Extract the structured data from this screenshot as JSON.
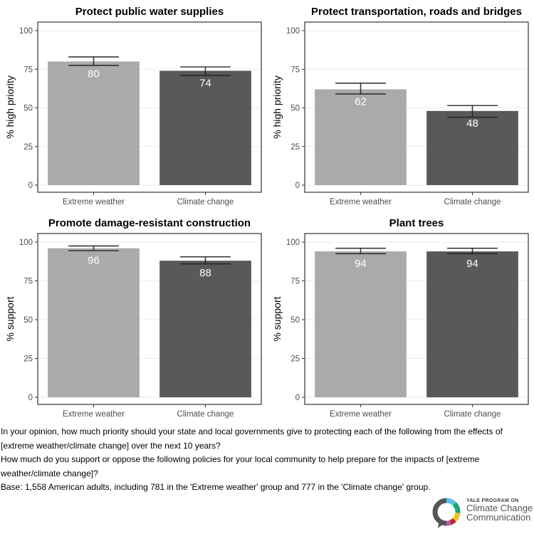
{
  "chart_data": [
    {
      "type": "bar",
      "title": "Protect public water supplies",
      "xlabel": "",
      "ylabel": "% high priority",
      "ylim": [
        0,
        100
      ],
      "yticks": [
        0,
        25,
        50,
        75,
        100
      ],
      "categories": [
        "Extreme weather",
        "Climate change"
      ],
      "values": [
        80,
        74
      ],
      "error_low": [
        77.5,
        71
      ],
      "error_high": [
        83,
        76.5
      ],
      "data_labels": [
        "80",
        "74"
      ],
      "grid": true
    },
    {
      "type": "bar",
      "title": "Protect transportation, roads and bridges",
      "xlabel": "",
      "ylabel": "% high priority",
      "ylim": [
        0,
        100
      ],
      "yticks": [
        0,
        25,
        50,
        75,
        100
      ],
      "categories": [
        "Extreme weather",
        "Climate change"
      ],
      "values": [
        62,
        48
      ],
      "error_low": [
        59,
        44
      ],
      "error_high": [
        66,
        51.5
      ],
      "data_labels": [
        "62",
        "48"
      ],
      "grid": true
    },
    {
      "type": "bar",
      "title": "Promote damage-resistant construction",
      "xlabel": "",
      "ylabel": "% support",
      "ylim": [
        0,
        100
      ],
      "yticks": [
        0,
        25,
        50,
        75,
        100
      ],
      "categories": [
        "Extreme weather",
        "Climate change"
      ],
      "values": [
        96,
        88
      ],
      "error_low": [
        94.5,
        86
      ],
      "error_high": [
        97.5,
        90.5
      ],
      "data_labels": [
        "96",
        "88"
      ],
      "grid": true
    },
    {
      "type": "bar",
      "title": "Plant trees",
      "xlabel": "",
      "ylabel": "% support",
      "ylim": [
        0,
        100
      ],
      "yticks": [
        0,
        25,
        50,
        75,
        100
      ],
      "categories": [
        "Extreme weather",
        "Climate change"
      ],
      "values": [
        94,
        94
      ],
      "error_low": [
        92.5,
        92.5
      ],
      "error_high": [
        96,
        96
      ],
      "data_labels": [
        "94",
        "94"
      ],
      "grid": true
    }
  ],
  "colors": {
    "extreme_weather": "#aaaaaa",
    "climate_change": "#595959",
    "label_text": "#ffffff",
    "error_bar": "#222222",
    "grid": "#ebebeb",
    "tick_text": "#4d4d4d"
  },
  "caption": {
    "line1": "In your opinion, how much priority should your state and local governments give to protecting each of the following from the effects of [extreme weather/climate change] over the next 10 years?",
    "line2": "How much do you support or oppose the following policies for your local community to help prepare for the impacts of [extreme weather/climate change]?",
    "line3": "Base: 1,558 American adults, including 781 in the 'Extreme weather' group and 777 in the 'Climate change' group."
  },
  "logo": {
    "small": "YALE PROGRAM ON",
    "line1": "Climate Change",
    "line2": "Communication",
    "ring_colors": [
      "#5bc0eb",
      "#1aa672",
      "#f4c01e",
      "#c4213c",
      "#b05fa8",
      "#555555"
    ]
  }
}
